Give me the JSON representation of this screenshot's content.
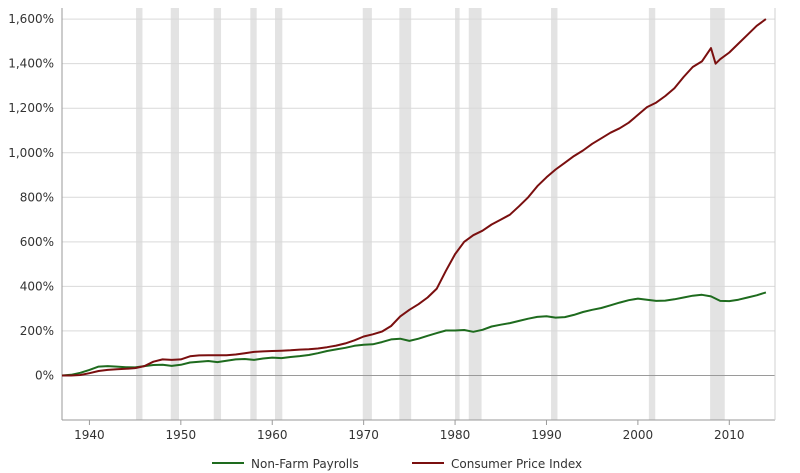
{
  "chart_data": {
    "type": "line",
    "title": "",
    "xlabel": "",
    "ylabel": "",
    "xlim": [
      1937,
      2015
    ],
    "ylim": [
      -200,
      1650
    ],
    "x_ticks": [
      1940,
      1950,
      1960,
      1970,
      1980,
      1990,
      2000,
      2010
    ],
    "x_tick_labels": [
      "1940",
      "1950",
      "1960",
      "1970",
      "1980",
      "1990",
      "2000",
      "2010"
    ],
    "y_ticks": [
      0,
      200,
      400,
      600,
      800,
      1000,
      1200,
      1400,
      1600
    ],
    "y_tick_labels": [
      "0%",
      "200%",
      "400%",
      "600%",
      "800%",
      "1,000%",
      "1,200%",
      "1,400%",
      "1,600%"
    ],
    "grid": true,
    "legend_position": "bottom-center",
    "recession_shading_color": "#e3e3e3",
    "recessions": [
      [
        1945.1,
        1945.8
      ],
      [
        1948.9,
        1949.8
      ],
      [
        1953.6,
        1954.4
      ],
      [
        1957.6,
        1958.3
      ],
      [
        1960.3,
        1961.1
      ],
      [
        1969.9,
        1970.9
      ],
      [
        1973.9,
        1975.2
      ],
      [
        1980.0,
        1980.5
      ],
      [
        1981.5,
        1982.9
      ],
      [
        1990.5,
        1991.2
      ],
      [
        2001.2,
        2001.9
      ],
      [
        2007.9,
        2009.5
      ]
    ],
    "series": [
      {
        "name": "Non-Farm Payrolls",
        "color": "#1e6b1e",
        "points": [
          [
            1937,
            0
          ],
          [
            1938,
            3
          ],
          [
            1939,
            12
          ],
          [
            1940,
            25
          ],
          [
            1941,
            40
          ],
          [
            1942,
            42
          ],
          [
            1943,
            40
          ],
          [
            1944,
            37
          ],
          [
            1945,
            36
          ],
          [
            1946,
            42
          ],
          [
            1947,
            47
          ],
          [
            1948,
            48
          ],
          [
            1949,
            43
          ],
          [
            1950,
            48
          ],
          [
            1951,
            58
          ],
          [
            1952,
            62
          ],
          [
            1953,
            65
          ],
          [
            1954,
            60
          ],
          [
            1955,
            66
          ],
          [
            1956,
            72
          ],
          [
            1957,
            74
          ],
          [
            1958,
            70
          ],
          [
            1959,
            76
          ],
          [
            1960,
            80
          ],
          [
            1961,
            78
          ],
          [
            1962,
            83
          ],
          [
            1963,
            87
          ],
          [
            1964,
            92
          ],
          [
            1965,
            100
          ],
          [
            1966,
            110
          ],
          [
            1967,
            117
          ],
          [
            1968,
            124
          ],
          [
            1969,
            133
          ],
          [
            1970,
            138
          ],
          [
            1971,
            140
          ],
          [
            1972,
            150
          ],
          [
            1973,
            162
          ],
          [
            1974,
            165
          ],
          [
            1975,
            155
          ],
          [
            1976,
            165
          ],
          [
            1977,
            178
          ],
          [
            1978,
            190
          ],
          [
            1979,
            202
          ],
          [
            1980,
            202
          ],
          [
            1981,
            204
          ],
          [
            1982,
            196
          ],
          [
            1983,
            205
          ],
          [
            1984,
            220
          ],
          [
            1985,
            228
          ],
          [
            1986,
            235
          ],
          [
            1987,
            245
          ],
          [
            1988,
            255
          ],
          [
            1989,
            263
          ],
          [
            1990,
            266
          ],
          [
            1991,
            260
          ],
          [
            1992,
            262
          ],
          [
            1993,
            272
          ],
          [
            1994,
            285
          ],
          [
            1995,
            295
          ],
          [
            1996,
            303
          ],
          [
            1997,
            315
          ],
          [
            1998,
            327
          ],
          [
            1999,
            338
          ],
          [
            2000,
            345
          ],
          [
            2001,
            340
          ],
          [
            2002,
            335
          ],
          [
            2003,
            336
          ],
          [
            2004,
            342
          ],
          [
            2005,
            350
          ],
          [
            2006,
            358
          ],
          [
            2007,
            362
          ],
          [
            2008,
            355
          ],
          [
            2009,
            335
          ],
          [
            2010,
            334
          ],
          [
            2011,
            340
          ],
          [
            2012,
            350
          ],
          [
            2013,
            360
          ],
          [
            2014,
            373
          ]
        ]
      },
      {
        "name": "Consumer Price Index",
        "color": "#7a0f0f",
        "points": [
          [
            1937,
            0
          ],
          [
            1938,
            0
          ],
          [
            1939,
            2
          ],
          [
            1940,
            10
          ],
          [
            1941,
            20
          ],
          [
            1942,
            25
          ],
          [
            1943,
            28
          ],
          [
            1944,
            30
          ],
          [
            1945,
            33
          ],
          [
            1946,
            42
          ],
          [
            1947,
            62
          ],
          [
            1948,
            72
          ],
          [
            1949,
            70
          ],
          [
            1950,
            72
          ],
          [
            1951,
            86
          ],
          [
            1952,
            90
          ],
          [
            1953,
            91
          ],
          [
            1954,
            91
          ],
          [
            1955,
            91
          ],
          [
            1956,
            94
          ],
          [
            1957,
            100
          ],
          [
            1958,
            106
          ],
          [
            1959,
            108
          ],
          [
            1960,
            110
          ],
          [
            1961,
            111
          ],
          [
            1962,
            113
          ],
          [
            1963,
            116
          ],
          [
            1964,
            118
          ],
          [
            1965,
            121
          ],
          [
            1966,
            127
          ],
          [
            1967,
            134
          ],
          [
            1968,
            144
          ],
          [
            1969,
            158
          ],
          [
            1970,
            175
          ],
          [
            1971,
            185
          ],
          [
            1972,
            197
          ],
          [
            1973,
            222
          ],
          [
            1974,
            265
          ],
          [
            1975,
            295
          ],
          [
            1976,
            320
          ],
          [
            1977,
            350
          ],
          [
            1978,
            390
          ],
          [
            1979,
            470
          ],
          [
            1980,
            545
          ],
          [
            1981,
            600
          ],
          [
            1982,
            630
          ],
          [
            1983,
            650
          ],
          [
            1984,
            678
          ],
          [
            1985,
            700
          ],
          [
            1986,
            722
          ],
          [
            1987,
            760
          ],
          [
            1988,
            800
          ],
          [
            1989,
            850
          ],
          [
            1990,
            890
          ],
          [
            1991,
            925
          ],
          [
            1992,
            955
          ],
          [
            1993,
            985
          ],
          [
            1994,
            1010
          ],
          [
            1995,
            1040
          ],
          [
            1996,
            1065
          ],
          [
            1997,
            1090
          ],
          [
            1998,
            1110
          ],
          [
            1999,
            1135
          ],
          [
            2000,
            1170
          ],
          [
            2001,
            1205
          ],
          [
            2002,
            1225
          ],
          [
            2003,
            1255
          ],
          [
            2004,
            1290
          ],
          [
            2005,
            1340
          ],
          [
            2006,
            1385
          ],
          [
            2007,
            1410
          ],
          [
            2008,
            1470
          ],
          [
            2008.5,
            1400
          ],
          [
            2009,
            1420
          ],
          [
            2010,
            1450
          ],
          [
            2011,
            1490
          ],
          [
            2012,
            1530
          ],
          [
            2013,
            1570
          ],
          [
            2014,
            1600
          ]
        ]
      }
    ]
  }
}
